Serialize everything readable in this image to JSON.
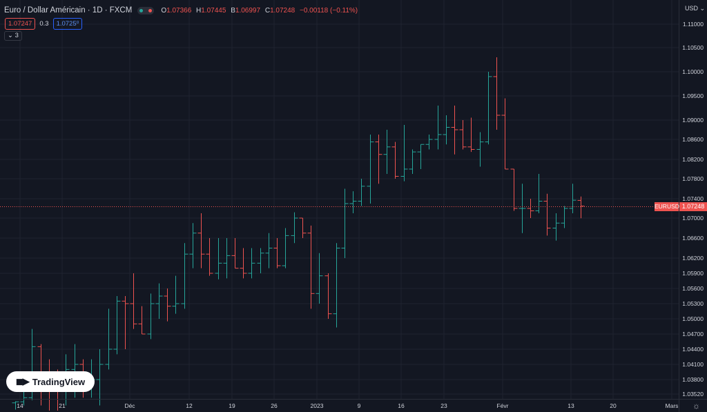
{
  "header": {
    "symbol_title": "Euro / Dollar Américain · 1D · FXCM",
    "ohlc": [
      {
        "label": "O",
        "value": "1.07366"
      },
      {
        "label": "H",
        "value": "1.07445"
      },
      {
        "label": "B",
        "value": "1.06997"
      },
      {
        "label": "C",
        "value": "1.07248"
      }
    ],
    "change": "−0.00118 (−0.11%)"
  },
  "quote": {
    "sell": "1.07247",
    "spread": "0.3",
    "buy": "1.0725⁰"
  },
  "indicators_count": "3",
  "axis_currency": "USD",
  "price_tag": "1.07248",
  "symbol_tag": "EURUSD",
  "logo_text": "TradingView",
  "colors": {
    "background": "#131722",
    "grid": "#1f2330",
    "up": "#26a69a",
    "down": "#ef5350",
    "text": "#d1d4dc"
  },
  "chart_data": {
    "type": "ohlc",
    "x_ticks": [
      "14",
      "21",
      "Déc",
      "12",
      "19",
      "26",
      "2023",
      "9",
      "16",
      "23",
      "Févr",
      "13",
      "20",
      "Mars"
    ],
    "y_ticks": [
      "1.11000",
      "1.10500",
      "1.10000",
      "1.09500",
      "1.09000",
      "1.08600",
      "1.08200",
      "1.07800",
      "1.07400",
      "1.07000",
      "1.06600",
      "1.06200",
      "1.05900",
      "1.05600",
      "1.05300",
      "1.05000",
      "1.04700",
      "1.04400",
      "1.04100",
      "1.03800",
      "1.03520"
    ],
    "last_price": 1.07248,
    "series": [
      {
        "o": 1.0335,
        "h": 1.0338,
        "l": 1.0322,
        "c": 1.0337
      },
      {
        "o": 1.0337,
        "h": 1.036,
        "l": 1.033,
        "c": 1.0345
      },
      {
        "o": 1.0345,
        "h": 1.048,
        "l": 1.034,
        "c": 1.0445
      },
      {
        "o": 1.0445,
        "h": 1.045,
        "l": 1.033,
        "c": 1.0395
      },
      {
        "o": 1.0395,
        "h": 1.042,
        "l": 1.032,
        "c": 1.0385
      },
      {
        "o": 1.0385,
        "h": 1.04,
        "l": 1.032,
        "c": 1.036
      },
      {
        "o": 1.036,
        "h": 1.043,
        "l": 1.033,
        "c": 1.04
      },
      {
        "o": 1.04,
        "h": 1.045,
        "l": 1.0345,
        "c": 1.041
      },
      {
        "o": 1.041,
        "h": 1.042,
        "l": 1.0345,
        "c": 1.038
      },
      {
        "o": 1.038,
        "h": 1.042,
        "l": 1.0345,
        "c": 1.038
      },
      {
        "o": 1.038,
        "h": 1.044,
        "l": 1.033,
        "c": 1.041
      },
      {
        "o": 1.041,
        "h": 1.052,
        "l": 1.04,
        "c": 1.044
      },
      {
        "o": 1.044,
        "h": 1.0545,
        "l": 1.043,
        "c": 1.0535
      },
      {
        "o": 1.0535,
        "h": 1.0545,
        "l": 1.044,
        "c": 1.053
      },
      {
        "o": 1.053,
        "h": 1.059,
        "l": 1.048,
        "c": 1.049
      },
      {
        "o": 1.049,
        "h": 1.0525,
        "l": 1.047,
        "c": 1.047
      },
      {
        "o": 1.047,
        "h": 1.055,
        "l": 1.046,
        "c": 1.053
      },
      {
        "o": 1.053,
        "h": 1.057,
        "l": 1.05,
        "c": 1.0545
      },
      {
        "o": 1.0545,
        "h": 1.056,
        "l": 1.0495,
        "c": 1.0525
      },
      {
        "o": 1.0525,
        "h": 1.0585,
        "l": 1.051,
        "c": 1.053
      },
      {
        "o": 1.053,
        "h": 1.065,
        "l": 1.052,
        "c": 1.0628
      },
      {
        "o": 1.0628,
        "h": 1.069,
        "l": 1.06,
        "c": 1.067
      },
      {
        "o": 1.067,
        "h": 1.071,
        "l": 1.06,
        "c": 1.0628
      },
      {
        "o": 1.0628,
        "h": 1.066,
        "l": 1.0585,
        "c": 1.059
      },
      {
        "o": 1.059,
        "h": 1.066,
        "l": 1.0578,
        "c": 1.061
      },
      {
        "o": 1.061,
        "h": 1.066,
        "l": 1.058,
        "c": 1.0625
      },
      {
        "o": 1.0625,
        "h": 1.066,
        "l": 1.06,
        "c": 1.06
      },
      {
        "o": 1.06,
        "h": 1.064,
        "l": 1.058,
        "c": 1.059
      },
      {
        "o": 1.059,
        "h": 1.064,
        "l": 1.058,
        "c": 1.061
      },
      {
        "o": 1.061,
        "h": 1.064,
        "l": 1.059,
        "c": 1.063
      },
      {
        "o": 1.063,
        "h": 1.067,
        "l": 1.06,
        "c": 1.064
      },
      {
        "o": 1.064,
        "h": 1.066,
        "l": 1.06,
        "c": 1.0605
      },
      {
        "o": 1.0605,
        "h": 1.068,
        "l": 1.06,
        "c": 1.0665
      },
      {
        "o": 1.0665,
        "h": 1.0712,
        "l": 1.065,
        "c": 1.07
      },
      {
        "o": 1.07,
        "h": 1.07,
        "l": 1.066,
        "c": 1.067
      },
      {
        "o": 1.067,
        "h": 1.0685,
        "l": 1.052,
        "c": 1.055
      },
      {
        "o": 1.055,
        "h": 1.063,
        "l": 1.053,
        "c": 1.0585
      },
      {
        "o": 1.0585,
        "h": 1.059,
        "l": 1.05,
        "c": 1.051
      },
      {
        "o": 1.051,
        "h": 1.065,
        "l": 1.0483,
        "c": 1.064
      },
      {
        "o": 1.064,
        "h": 1.076,
        "l": 1.062,
        "c": 1.073
      },
      {
        "o": 1.073,
        "h": 1.0755,
        "l": 1.071,
        "c": 1.0735
      },
      {
        "o": 1.0735,
        "h": 1.078,
        "l": 1.0725,
        "c": 1.0765
      },
      {
        "o": 1.0765,
        "h": 1.087,
        "l": 1.073,
        "c": 1.0855
      },
      {
        "o": 1.0855,
        "h": 1.087,
        "l": 1.077,
        "c": 1.083
      },
      {
        "o": 1.083,
        "h": 1.088,
        "l": 1.079,
        "c": 1.0845
      },
      {
        "o": 1.0845,
        "h": 1.0855,
        "l": 1.078,
        "c": 1.0785
      },
      {
        "o": 1.0785,
        "h": 1.089,
        "l": 1.0775,
        "c": 1.08
      },
      {
        "o": 1.08,
        "h": 1.084,
        "l": 1.079,
        "c": 1.0835
      },
      {
        "o": 1.0835,
        "h": 1.085,
        "l": 1.08,
        "c": 1.085
      },
      {
        "o": 1.085,
        "h": 1.087,
        "l": 1.084,
        "c": 1.086
      },
      {
        "o": 1.086,
        "h": 1.093,
        "l": 1.084,
        "c": 1.087
      },
      {
        "o": 1.087,
        "h": 1.091,
        "l": 1.085,
        "c": 1.0885
      },
      {
        "o": 1.0885,
        "h": 1.093,
        "l": 1.083,
        "c": 1.088
      },
      {
        "o": 1.088,
        "h": 1.09,
        "l": 1.084,
        "c": 1.0845
      },
      {
        "o": 1.0845,
        "h": 1.0905,
        "l": 1.0835,
        "c": 1.084
      },
      {
        "o": 1.084,
        "h": 1.0875,
        "l": 1.0805,
        "c": 1.0855
      },
      {
        "o": 1.0855,
        "h": 1.1,
        "l": 1.085,
        "c": 1.099
      },
      {
        "o": 1.099,
        "h": 1.103,
        "l": 1.088,
        "c": 1.091
      },
      {
        "o": 1.091,
        "h": 1.0945,
        "l": 1.08,
        "c": 1.08
      },
      {
        "o": 1.08,
        "h": 1.08,
        "l": 1.0715,
        "c": 1.072
      },
      {
        "o": 1.072,
        "h": 1.077,
        "l": 1.067,
        "c": 1.072
      },
      {
        "o": 1.072,
        "h": 1.074,
        "l": 1.07,
        "c": 1.0715
      },
      {
        "o": 1.0715,
        "h": 1.079,
        "l": 1.071,
        "c": 1.0735
      },
      {
        "o": 1.0735,
        "h": 1.075,
        "l": 1.0665,
        "c": 1.068
      },
      {
        "o": 1.068,
        "h": 1.071,
        "l": 1.0655,
        "c": 1.069
      },
      {
        "o": 1.069,
        "h": 1.0725,
        "l": 1.068,
        "c": 1.072
      },
      {
        "o": 1.072,
        "h": 1.077,
        "l": 1.071,
        "c": 1.0737
      },
      {
        "o": 1.07366,
        "h": 1.07445,
        "l": 1.06997,
        "c": 1.07248
      }
    ]
  }
}
